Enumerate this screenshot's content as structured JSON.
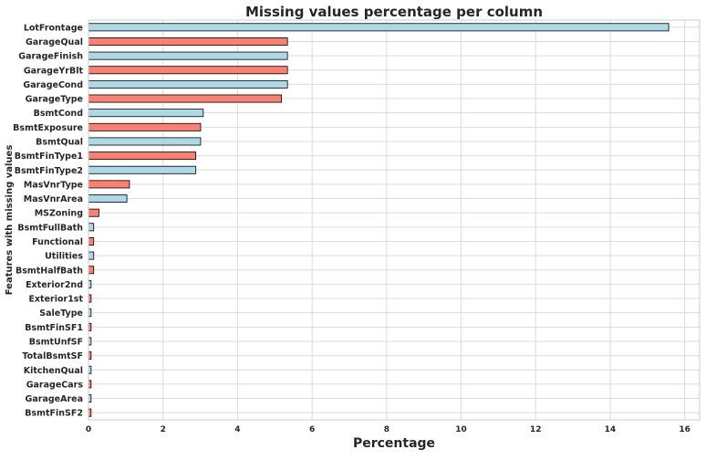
{
  "chart_data": {
    "type": "bar",
    "orientation": "horizontal",
    "title": "Missing values percentage per column",
    "xlabel": "Percentage",
    "ylabel": "Features with missing values",
    "xlim": [
      0,
      16.4
    ],
    "xticks": [
      "0",
      "2",
      "4",
      "6",
      "8",
      "10",
      "12",
      "14",
      "16"
    ],
    "grid": true,
    "colors": [
      "#add8e6",
      "#fa8072"
    ],
    "categories": [
      "LotFrontage",
      "GarageQual",
      "GarageFinish",
      "GarageYrBlt",
      "GarageCond",
      "GarageType",
      "BsmtCond",
      "BsmtExposure",
      "BsmtQual",
      "BsmtFinType1",
      "BsmtFinType2",
      "MasVnrType",
      "MasVnrArea",
      "MSZoning",
      "BsmtFullBath",
      "Functional",
      "Utilities",
      "BsmtHalfBath",
      "Exterior2nd",
      "Exterior1st",
      "SaleType",
      "BsmtFinSF1",
      "BsmtUnfSF",
      "TotalBsmtSF",
      "KitchenQual",
      "GarageCars",
      "GarageArea",
      "BsmtFinSF2"
    ],
    "values": [
      15.57,
      5.34,
      5.34,
      5.34,
      5.34,
      5.18,
      3.08,
      3.01,
      3.01,
      2.88,
      2.88,
      1.1,
      1.03,
      0.28,
      0.14,
      0.14,
      0.14,
      0.14,
      0.07,
      0.07,
      0.07,
      0.07,
      0.07,
      0.07,
      0.07,
      0.07,
      0.07,
      0.07
    ]
  }
}
